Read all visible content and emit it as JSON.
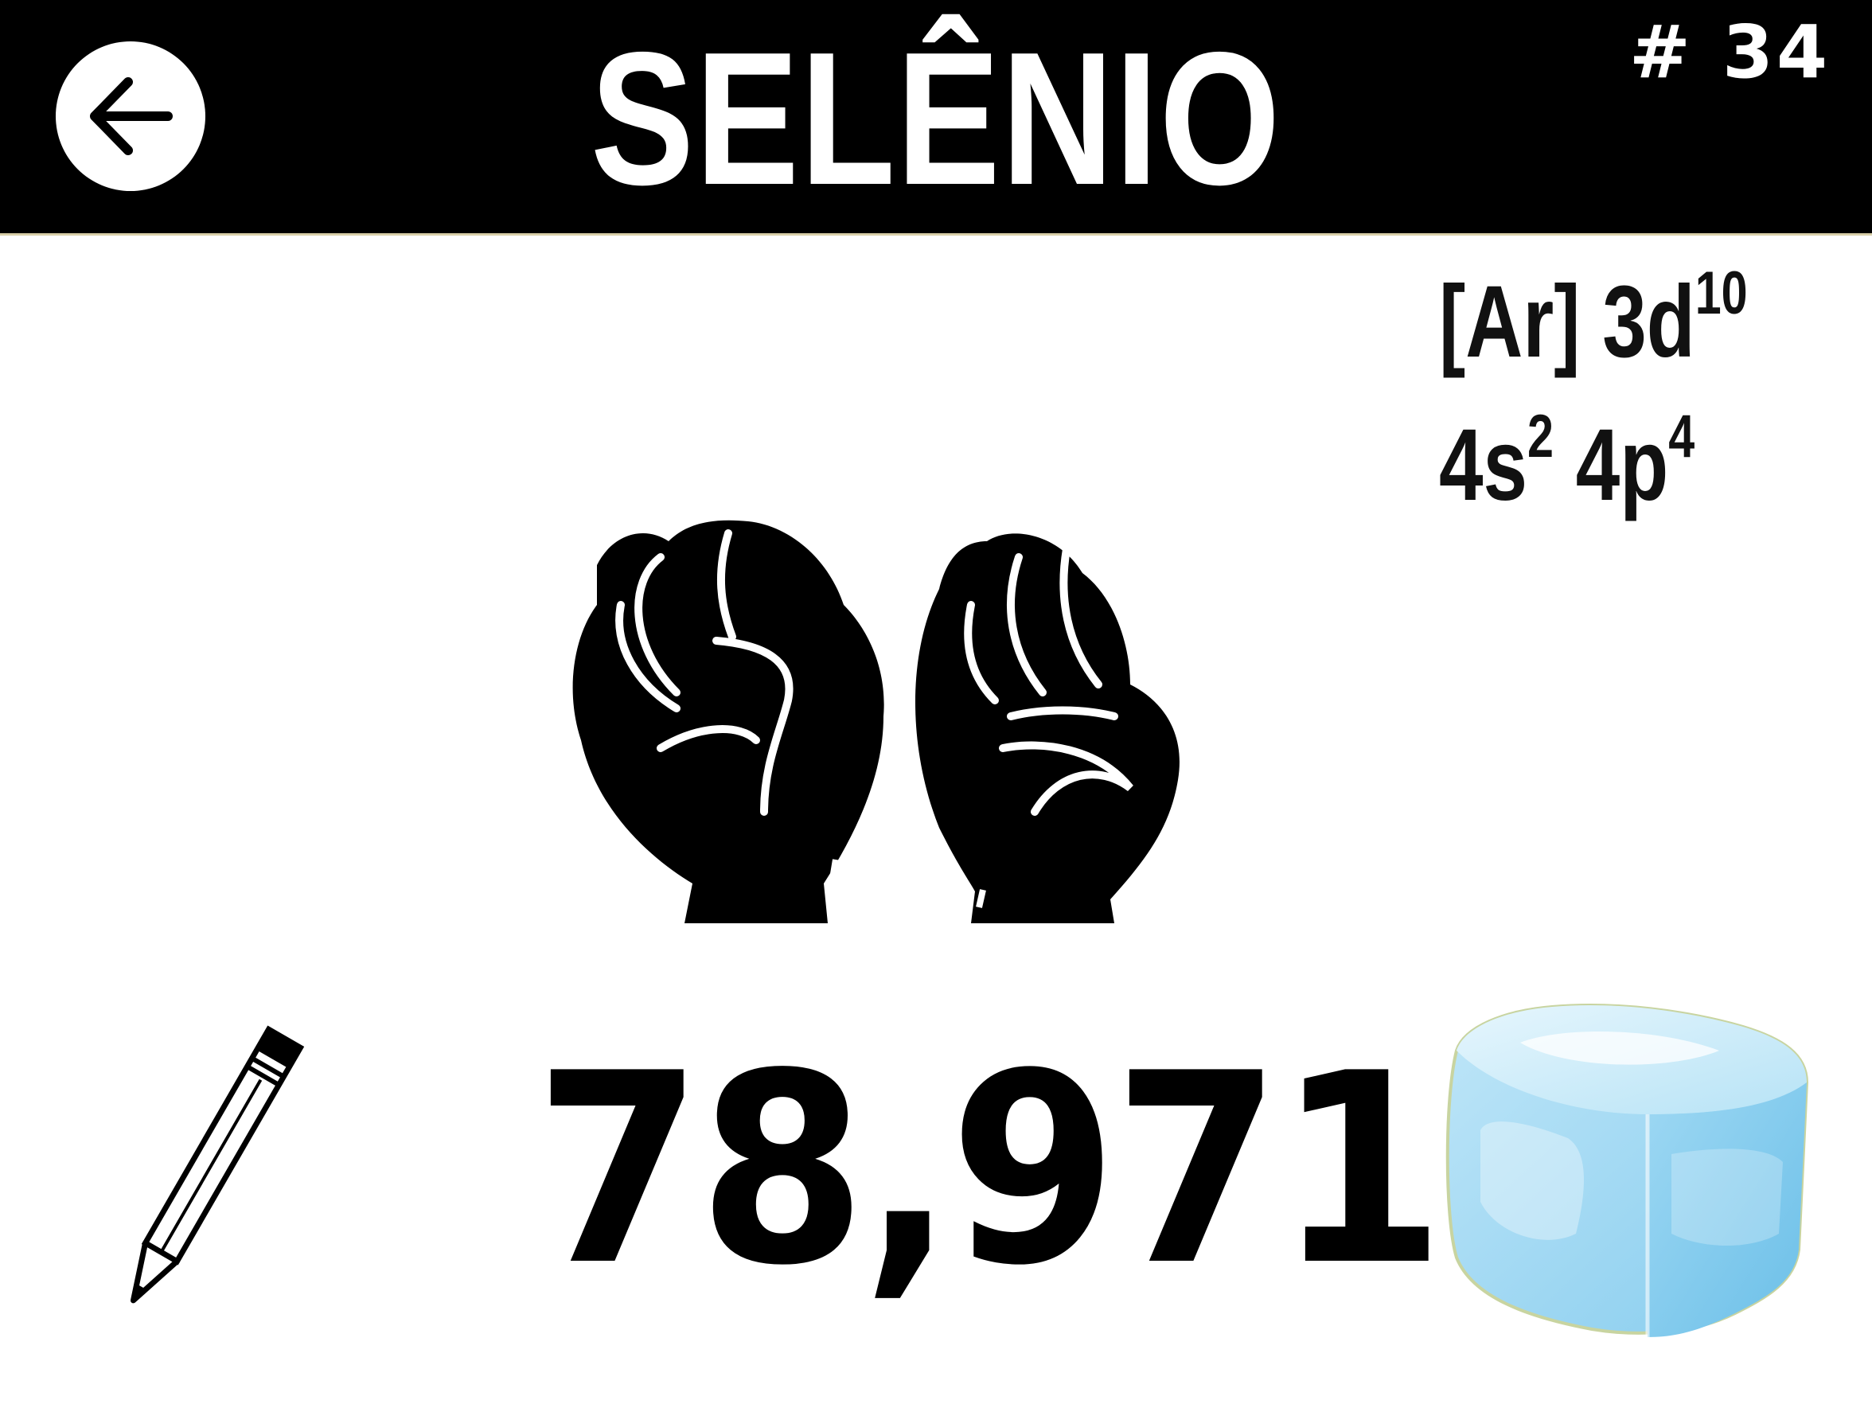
{
  "header": {
    "element_name": "SELÊNIO",
    "atomic_number": "# 34",
    "back_icon": "arrow-left-icon"
  },
  "electron_configuration": {
    "line1_prefix": "[Ar] 3d",
    "line1_sup": "10",
    "line2_a": "4s",
    "line2_a_sup": "2",
    "line2_b": " 4p",
    "line2_b_sup": "4"
  },
  "sign_language": {
    "icon": "fist-hands-icon"
  },
  "atomic_mass": "78,971",
  "icons": {
    "left": "pencil-icon",
    "right": "ice-cube-icon"
  },
  "colors": {
    "header_bg": "#000000",
    "header_text": "#ffffff",
    "text": "#000000",
    "ice": "#9fd8f2"
  }
}
